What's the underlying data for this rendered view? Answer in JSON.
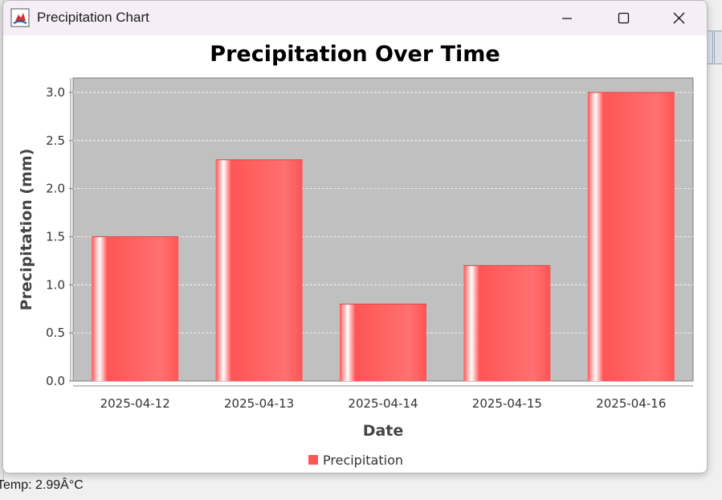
{
  "window": {
    "title": "Precipitation Chart"
  },
  "background": {
    "status_text": "Temp: 2.99Â°C"
  },
  "chart_data": {
    "type": "bar",
    "title": "Precipitation Over Time",
    "xlabel": "Date",
    "ylabel": "Precipitation (mm)",
    "categories": [
      "2025-04-12",
      "2025-04-13",
      "2025-04-14",
      "2025-04-15",
      "2025-04-16"
    ],
    "series": [
      {
        "name": "Precipitation",
        "values": [
          1.5,
          2.3,
          0.8,
          1.2,
          3.0
        ]
      }
    ],
    "ylim": [
      0,
      3.15
    ],
    "yticks": [
      "0.0",
      "0.5",
      "1.0",
      "1.5",
      "2.0",
      "2.5",
      "3.0"
    ],
    "grid": true,
    "legend": "bottom-center",
    "colors": {
      "bar": "#ff5555",
      "plot_background": "#c0c0c0",
      "gridline": "#ffffff"
    }
  }
}
